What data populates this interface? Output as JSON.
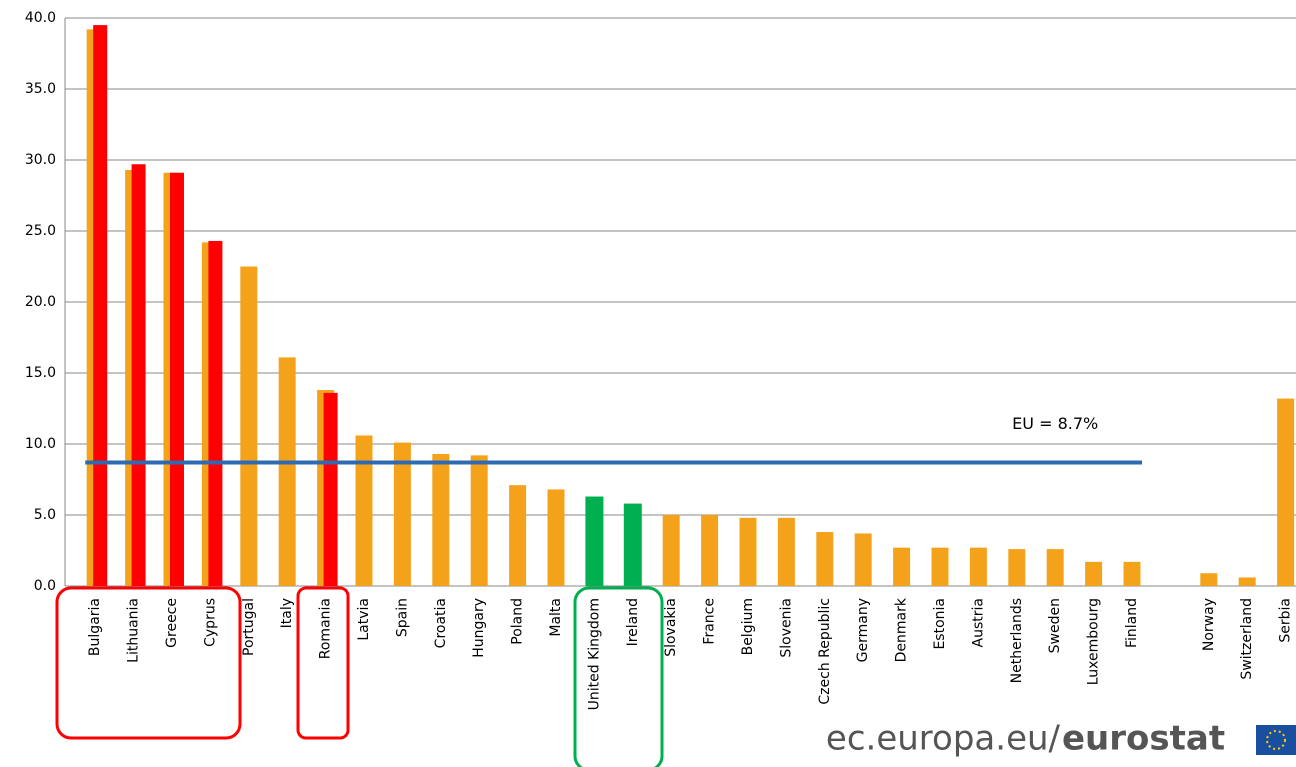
{
  "chart_data": {
    "type": "bar",
    "categories": [
      "Bulgaria",
      "Lithuania",
      "Greece",
      "Cyprus",
      "Portugal",
      "Italy",
      "Romania",
      "Latvia",
      "Spain",
      "Croatia",
      "Hungary",
      "Poland",
      "Malta",
      "United Kingdom",
      "Ireland",
      "Slovakia",
      "France",
      "Belgium",
      "Slovenia",
      "Czech Republic",
      "Germany",
      "Denmark",
      "Estonia",
      "Austria",
      "Netherlands",
      "Sweden",
      "Luxembourg",
      "Finland",
      null,
      "Norway",
      "Switzerland",
      "Serbia"
    ],
    "series": [
      {
        "color": "#f5a21b",
        "values": [
          39.2,
          29.3,
          29.1,
          24.2,
          22.5,
          16.1,
          13.8,
          10.6,
          10.1,
          9.3,
          9.2,
          7.1,
          6.8,
          6.2,
          5.8,
          5.0,
          5.0,
          4.8,
          4.8,
          3.8,
          3.7,
          2.7,
          2.7,
          2.7,
          2.6,
          2.6,
          1.7,
          1.7,
          null,
          0.9,
          0.6,
          13.2
        ]
      },
      {
        "color": "#ff0000",
        "values": [
          39.5,
          29.7,
          29.1,
          24.3,
          null,
          null,
          13.6,
          null,
          null,
          null,
          null,
          null,
          null,
          null,
          null,
          null,
          null,
          null,
          null,
          null,
          null,
          null,
          null,
          null,
          null,
          null,
          null,
          null,
          null,
          null,
          null,
          null
        ]
      },
      {
        "color": "#00b050",
        "values": [
          null,
          null,
          null,
          null,
          null,
          null,
          null,
          null,
          null,
          null,
          null,
          null,
          null,
          6.3,
          5.8,
          null,
          null,
          null,
          null,
          null,
          null,
          null,
          null,
          null,
          null,
          null,
          null,
          null,
          null,
          null,
          null,
          null
        ]
      }
    ],
    "reference_line": {
      "value": 8.7,
      "label": "EU = 8.7%",
      "color": "#2e6ab1"
    },
    "ylim": [
      0,
      40
    ],
    "yticks": [
      {
        "value": 0,
        "label": "0.0"
      },
      {
        "value": 5,
        "label": "5.0"
      },
      {
        "value": 10,
        "label": "10.0"
      },
      {
        "value": 15,
        "label": "15.0"
      },
      {
        "value": 20,
        "label": "20.0"
      },
      {
        "value": 25,
        "label": "25.0"
      },
      {
        "value": 30,
        "label": "30.0"
      },
      {
        "value": 35,
        "label": "35.0"
      },
      {
        "value": 40,
        "label": "40.0"
      }
    ],
    "grid": true,
    "source": [
      "ec.europa.eu/",
      "eurostat"
    ]
  }
}
